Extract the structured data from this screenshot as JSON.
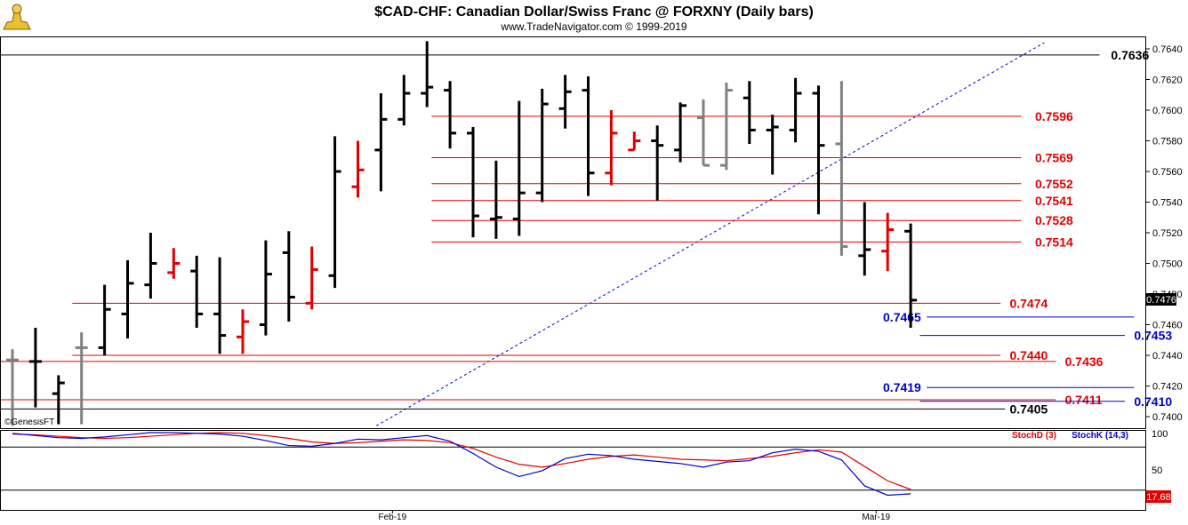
{
  "header": {
    "title": "$CAD-CHF:  Canadian Dollar/Swiss Franc @ FORXNY  (Daily bars)",
    "subtitle": "www.TradeNavigator.com © 1999-2019",
    "watermark": "©GenesisFT"
  },
  "colors": {
    "up_bar": "#000000",
    "down_bar": "#e00000",
    "gray_bar": "#808080",
    "resistance": "#e00000",
    "support": "#0000cc",
    "trendline": "#0000cc"
  },
  "chart_data": [
    {
      "type": "bar",
      "subtype": "ohlc",
      "title": "$CAD-CHF:  Canadian Dollar/Swiss Franc @ FORXNY  (Daily bars)",
      "ylim": [
        0.7394,
        0.7647
      ],
      "yticks": [
        "0.7400",
        "0.7420",
        "0.7440",
        "0.7460",
        "0.7480",
        "0.7500",
        "0.7520",
        "0.7540",
        "0.7560",
        "0.7580",
        "0.7600",
        "0.7620",
        "0.7640"
      ],
      "last_price": "0.7476",
      "xlabels": [
        {
          "text": "Feb-19",
          "bar": 16.5
        },
        {
          "text": "Mar-19",
          "bar": 37.5
        }
      ],
      "bars": [
        {
          "h": 0.7444,
          "l": 0.7394,
          "o": 0.7437,
          "c": 0.7437,
          "color": "gray"
        },
        {
          "h": 0.7458,
          "l": 0.7406,
          "o": 0.7436,
          "c": 0.7436,
          "color": "black"
        },
        {
          "h": 0.7427,
          "l": 0.7395,
          "o": 0.7415,
          "c": 0.7422,
          "color": "black"
        },
        {
          "h": 0.7455,
          "l": 0.7395,
          "o": 0.7445,
          "c": 0.7445,
          "color": "gray"
        },
        {
          "h": 0.7486,
          "l": 0.744,
          "o": 0.7445,
          "c": 0.747,
          "color": "black"
        },
        {
          "h": 0.7502,
          "l": 0.7451,
          "o": 0.7467,
          "c": 0.7487,
          "color": "black"
        },
        {
          "h": 0.752,
          "l": 0.7477,
          "o": 0.7486,
          "c": 0.75,
          "color": "black"
        },
        {
          "h": 0.751,
          "l": 0.749,
          "o": 0.7494,
          "c": 0.75,
          "color": "red"
        },
        {
          "h": 0.7505,
          "l": 0.7458,
          "o": 0.7495,
          "c": 0.7467,
          "color": "black"
        },
        {
          "h": 0.7504,
          "l": 0.7441,
          "o": 0.7467,
          "c": 0.7453,
          "color": "black"
        },
        {
          "h": 0.747,
          "l": 0.7441,
          "o": 0.7452,
          "c": 0.7462,
          "color": "red"
        },
        {
          "h": 0.7515,
          "l": 0.7453,
          "o": 0.746,
          "c": 0.7493,
          "color": "black"
        },
        {
          "h": 0.7521,
          "l": 0.7462,
          "o": 0.7507,
          "c": 0.7478,
          "color": "black"
        },
        {
          "h": 0.7511,
          "l": 0.747,
          "o": 0.7474,
          "c": 0.7496,
          "color": "red"
        },
        {
          "h": 0.7583,
          "l": 0.7484,
          "o": 0.7492,
          "c": 0.756,
          "color": "black"
        },
        {
          "h": 0.758,
          "l": 0.7543,
          "o": 0.755,
          "c": 0.7561,
          "color": "red"
        },
        {
          "h": 0.7611,
          "l": 0.7547,
          "o": 0.7574,
          "c": 0.7594,
          "color": "black"
        },
        {
          "h": 0.7623,
          "l": 0.759,
          "o": 0.7594,
          "c": 0.7611,
          "color": "black"
        },
        {
          "h": 0.7645,
          "l": 0.7602,
          "o": 0.7611,
          "c": 0.7615,
          "color": "black"
        },
        {
          "h": 0.7619,
          "l": 0.7575,
          "o": 0.7613,
          "c": 0.7585,
          "color": "black"
        },
        {
          "h": 0.7589,
          "l": 0.7517,
          "o": 0.7585,
          "c": 0.7531,
          "color": "black"
        },
        {
          "h": 0.7567,
          "l": 0.7516,
          "o": 0.7529,
          "c": 0.753,
          "color": "black"
        },
        {
          "h": 0.7606,
          "l": 0.7518,
          "o": 0.7529,
          "c": 0.7546,
          "color": "black"
        },
        {
          "h": 0.7614,
          "l": 0.754,
          "o": 0.7546,
          "c": 0.7604,
          "color": "black"
        },
        {
          "h": 0.7623,
          "l": 0.7588,
          "o": 0.7601,
          "c": 0.7612,
          "color": "black"
        },
        {
          "h": 0.7622,
          "l": 0.7544,
          "o": 0.7613,
          "c": 0.7559,
          "color": "black"
        },
        {
          "h": 0.76,
          "l": 0.7551,
          "o": 0.7559,
          "c": 0.7585,
          "color": "red"
        },
        {
          "h": 0.7586,
          "l": 0.7574,
          "o": 0.7574,
          "c": 0.758,
          "color": "red"
        },
        {
          "h": 0.759,
          "l": 0.7541,
          "o": 0.758,
          "c": 0.7577,
          "color": "black"
        },
        {
          "h": 0.7605,
          "l": 0.7566,
          "o": 0.7574,
          "c": 0.7603,
          "color": "black"
        },
        {
          "h": 0.7607,
          "l": 0.7564,
          "o": 0.7595,
          "c": 0.7564,
          "color": "gray"
        },
        {
          "h": 0.7618,
          "l": 0.7561,
          "o": 0.7564,
          "c": 0.7613,
          "color": "gray"
        },
        {
          "h": 0.7619,
          "l": 0.7578,
          "o": 0.7608,
          "c": 0.7587,
          "color": "black"
        },
        {
          "h": 0.7597,
          "l": 0.7558,
          "o": 0.7587,
          "c": 0.7589,
          "color": "black"
        },
        {
          "h": 0.7621,
          "l": 0.7579,
          "o": 0.7587,
          "c": 0.7611,
          "color": "black"
        },
        {
          "h": 0.7616,
          "l": 0.7532,
          "o": 0.7611,
          "c": 0.7577,
          "color": "black"
        },
        {
          "h": 0.7619,
          "l": 0.7505,
          "o": 0.7578,
          "c": 0.7511,
          "color": "gray"
        },
        {
          "h": 0.754,
          "l": 0.7492,
          "o": 0.7505,
          "c": 0.7509,
          "color": "black"
        },
        {
          "h": 0.7533,
          "l": 0.7495,
          "o": 0.7508,
          "c": 0.7522,
          "color": "red"
        },
        {
          "h": 0.7526,
          "l": 0.7458,
          "o": 0.7521,
          "c": 0.7476,
          "color": "black"
        }
      ],
      "levels": [
        {
          "value": 0.7636,
          "label": "0.7636",
          "color": "black",
          "from_bar": -1,
          "to_bar": 47.2,
          "label_bar": 47.7
        },
        {
          "value": 0.7596,
          "label": "0.7596",
          "color": "red",
          "from_bar": 18.2,
          "to_bar": 43.8,
          "label_bar": 44.4
        },
        {
          "value": 0.7569,
          "label": "0.7569",
          "color": "red",
          "from_bar": 18.2,
          "to_bar": 43.8,
          "label_bar": 44.4
        },
        {
          "value": 0.7552,
          "label": "0.7552",
          "color": "red",
          "from_bar": 18.2,
          "to_bar": 43.8,
          "label_bar": 44.4
        },
        {
          "value": 0.7541,
          "label": "0.7541",
          "color": "red",
          "from_bar": 18.2,
          "to_bar": 43.8,
          "label_bar": 44.4
        },
        {
          "value": 0.7528,
          "label": "0.7528",
          "color": "red",
          "from_bar": 18.2,
          "to_bar": 43.8,
          "label_bar": 44.4
        },
        {
          "value": 0.7514,
          "label": "0.7514",
          "color": "red",
          "from_bar": 18.2,
          "to_bar": 43.8,
          "label_bar": 44.4
        },
        {
          "value": 0.7474,
          "label": "0.7474",
          "color": "red",
          "from_bar": 2.6,
          "to_bar": 42.9,
          "label_bar": 43.3
        },
        {
          "value": 0.7465,
          "label": "0.7465",
          "color": "blue",
          "from_bar": 39.7,
          "to_bar": 48.7,
          "label_bar": 37.8
        },
        {
          "value": 0.7453,
          "label": "0.7453",
          "color": "blue",
          "from_bar": 39.4,
          "to_bar": 48.3,
          "label_bar": 48.7
        },
        {
          "value": 0.744,
          "label": "0.7440",
          "color": "red",
          "from_bar": 2.6,
          "to_bar": 42.9,
          "label_bar": 43.3
        },
        {
          "value": 0.7436,
          "label": "0.7436",
          "color": "red",
          "from_bar": -1,
          "to_bar": 45.3,
          "label_bar": 45.7
        },
        {
          "value": 0.7419,
          "label": "0.7419",
          "color": "blue",
          "from_bar": 39.7,
          "to_bar": 48.7,
          "label_bar": 37.8
        },
        {
          "value": 0.7411,
          "label": "0.7411",
          "color": "red",
          "from_bar": -1,
          "to_bar": 45.3,
          "label_bar": 45.7
        },
        {
          "value": 0.741,
          "label": "0.7410",
          "color": "blue",
          "from_bar": 39.4,
          "to_bar": 48.3,
          "label_bar": 48.7
        },
        {
          "value": 0.7405,
          "label": "0.7405",
          "color": "black",
          "from_bar": -1,
          "to_bar": 43.1,
          "label_bar": 43.3
        }
      ],
      "trendline": {
        "from": {
          "bar": 15.8,
          "value": 0.7394
        },
        "to": {
          "bar": 44.8,
          "value": 0.7644
        },
        "style": "dotted"
      }
    },
    {
      "type": "line",
      "title": "Stochastics",
      "ylim": [
        0,
        100
      ],
      "yticks": [
        "100",
        "50"
      ],
      "last_value": "17.68",
      "reference_lines": [
        80,
        20
      ],
      "series": [
        {
          "name": "StochD (3)",
          "color": "#e00000",
          "values": [
            98,
            97,
            95,
            93,
            92,
            93,
            95,
            97,
            99,
            100,
            99,
            96,
            92,
            87,
            85,
            86,
            88,
            90,
            89,
            86,
            78,
            66,
            56,
            52,
            57,
            63,
            67,
            69,
            66,
            63,
            62,
            61,
            64,
            67,
            72,
            76,
            73,
            53,
            33,
            21
          ]
        },
        {
          "name": "StochK (14,3)",
          "color": "#0000cc",
          "values": [
            99,
            96,
            93,
            92,
            94,
            97,
            100,
            100,
            99,
            98,
            95,
            89,
            82,
            81,
            85,
            91,
            90,
            93,
            96,
            88,
            71,
            52,
            39,
            47,
            64,
            70,
            68,
            63,
            60,
            57,
            52,
            59,
            61,
            72,
            77,
            74,
            62,
            26,
            13,
            15
          ]
        }
      ]
    }
  ]
}
